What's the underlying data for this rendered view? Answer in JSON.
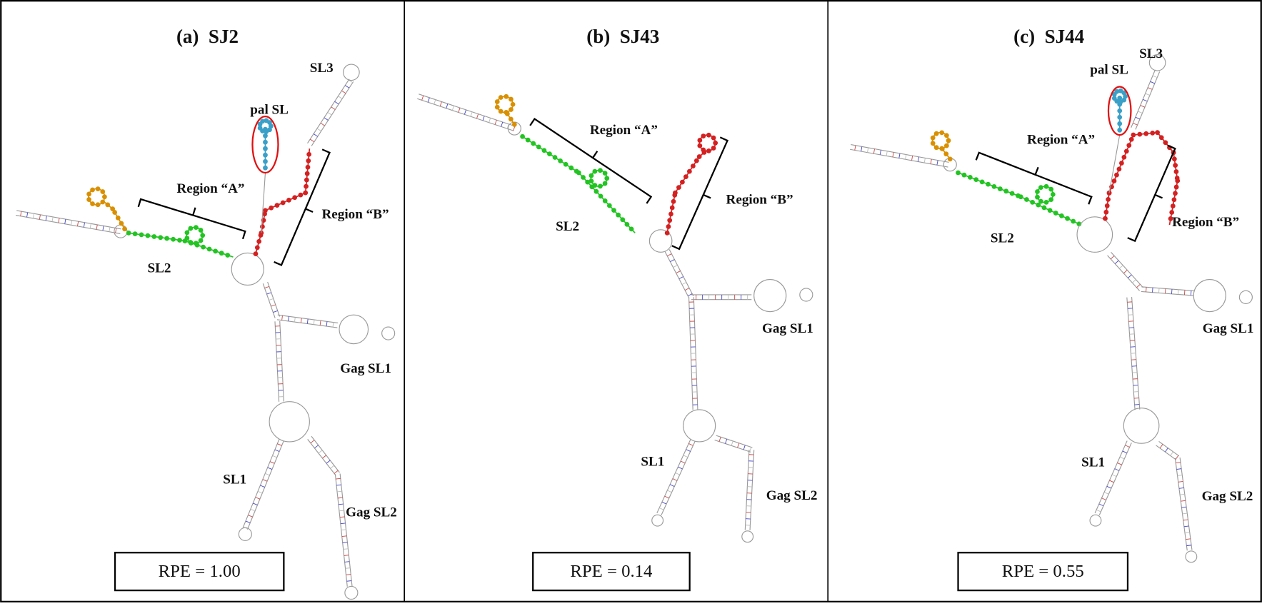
{
  "panels": [
    {
      "title": "(a)  SJ2",
      "labels": [
        "SL3",
        "pal SL",
        "Region “A”",
        "Region “B”",
        "SL2",
        "Gag SL1",
        "SL1",
        "Gag SL2"
      ],
      "rpe": "RPE = 1.00"
    },
    {
      "title": "(b)  SJ43",
      "labels": [
        "Region “A”",
        "Region “B”",
        "SL2",
        "Gag SL1",
        "SL1",
        "Gag SL2"
      ],
      "rpe": "RPE = 0.14"
    },
    {
      "title": "(c)  SJ44",
      "labels": [
        "SL3",
        "pal SL",
        "Region “A”",
        "Region “B”",
        "SL2",
        "Gag SL1",
        "SL1",
        "Gag SL2"
      ],
      "rpe": "RPE = 0.55"
    }
  ]
}
